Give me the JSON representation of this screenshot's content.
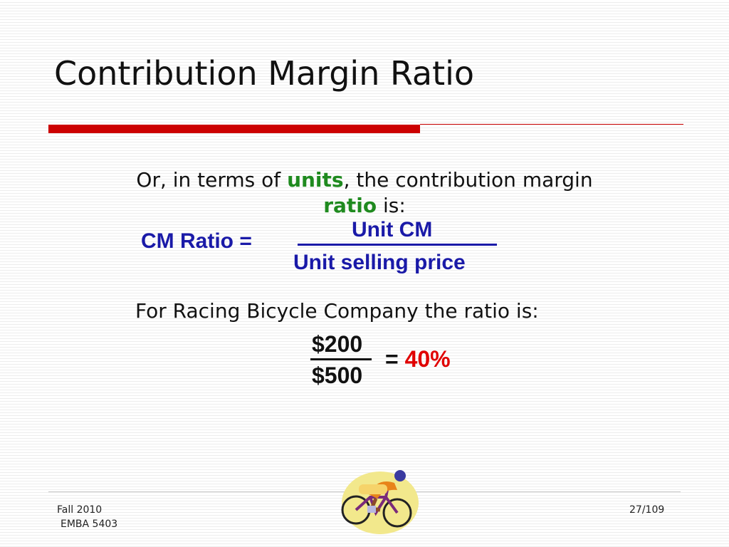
{
  "slide": {
    "title": "Contribution Margin Ratio",
    "intro": {
      "part1": "Or, in terms of ",
      "units_word": "units",
      "part2": ", the contribution margin",
      "ratio_word": "ratio",
      "part3": " is:"
    },
    "formula": {
      "label": "CM Ratio  =",
      "numerator": "Unit CM",
      "denominator": "Unit selling price"
    },
    "company_line": "For Racing Bicycle Company the ratio is:",
    "example": {
      "numerator": "$200",
      "denominator": "$500",
      "equals": "= ",
      "result": "40%"
    }
  },
  "footer": {
    "left_line1": "Fall 2010",
    "left_line2": "EMBA 5403",
    "page": "27/109"
  },
  "colors": {
    "accent_red": "#cc0000",
    "formula_blue": "#1a1aa8",
    "keyword_green": "#1f8a1f",
    "result_red": "#e00000"
  },
  "icons": {
    "clipart": "cyclist-clipart"
  }
}
